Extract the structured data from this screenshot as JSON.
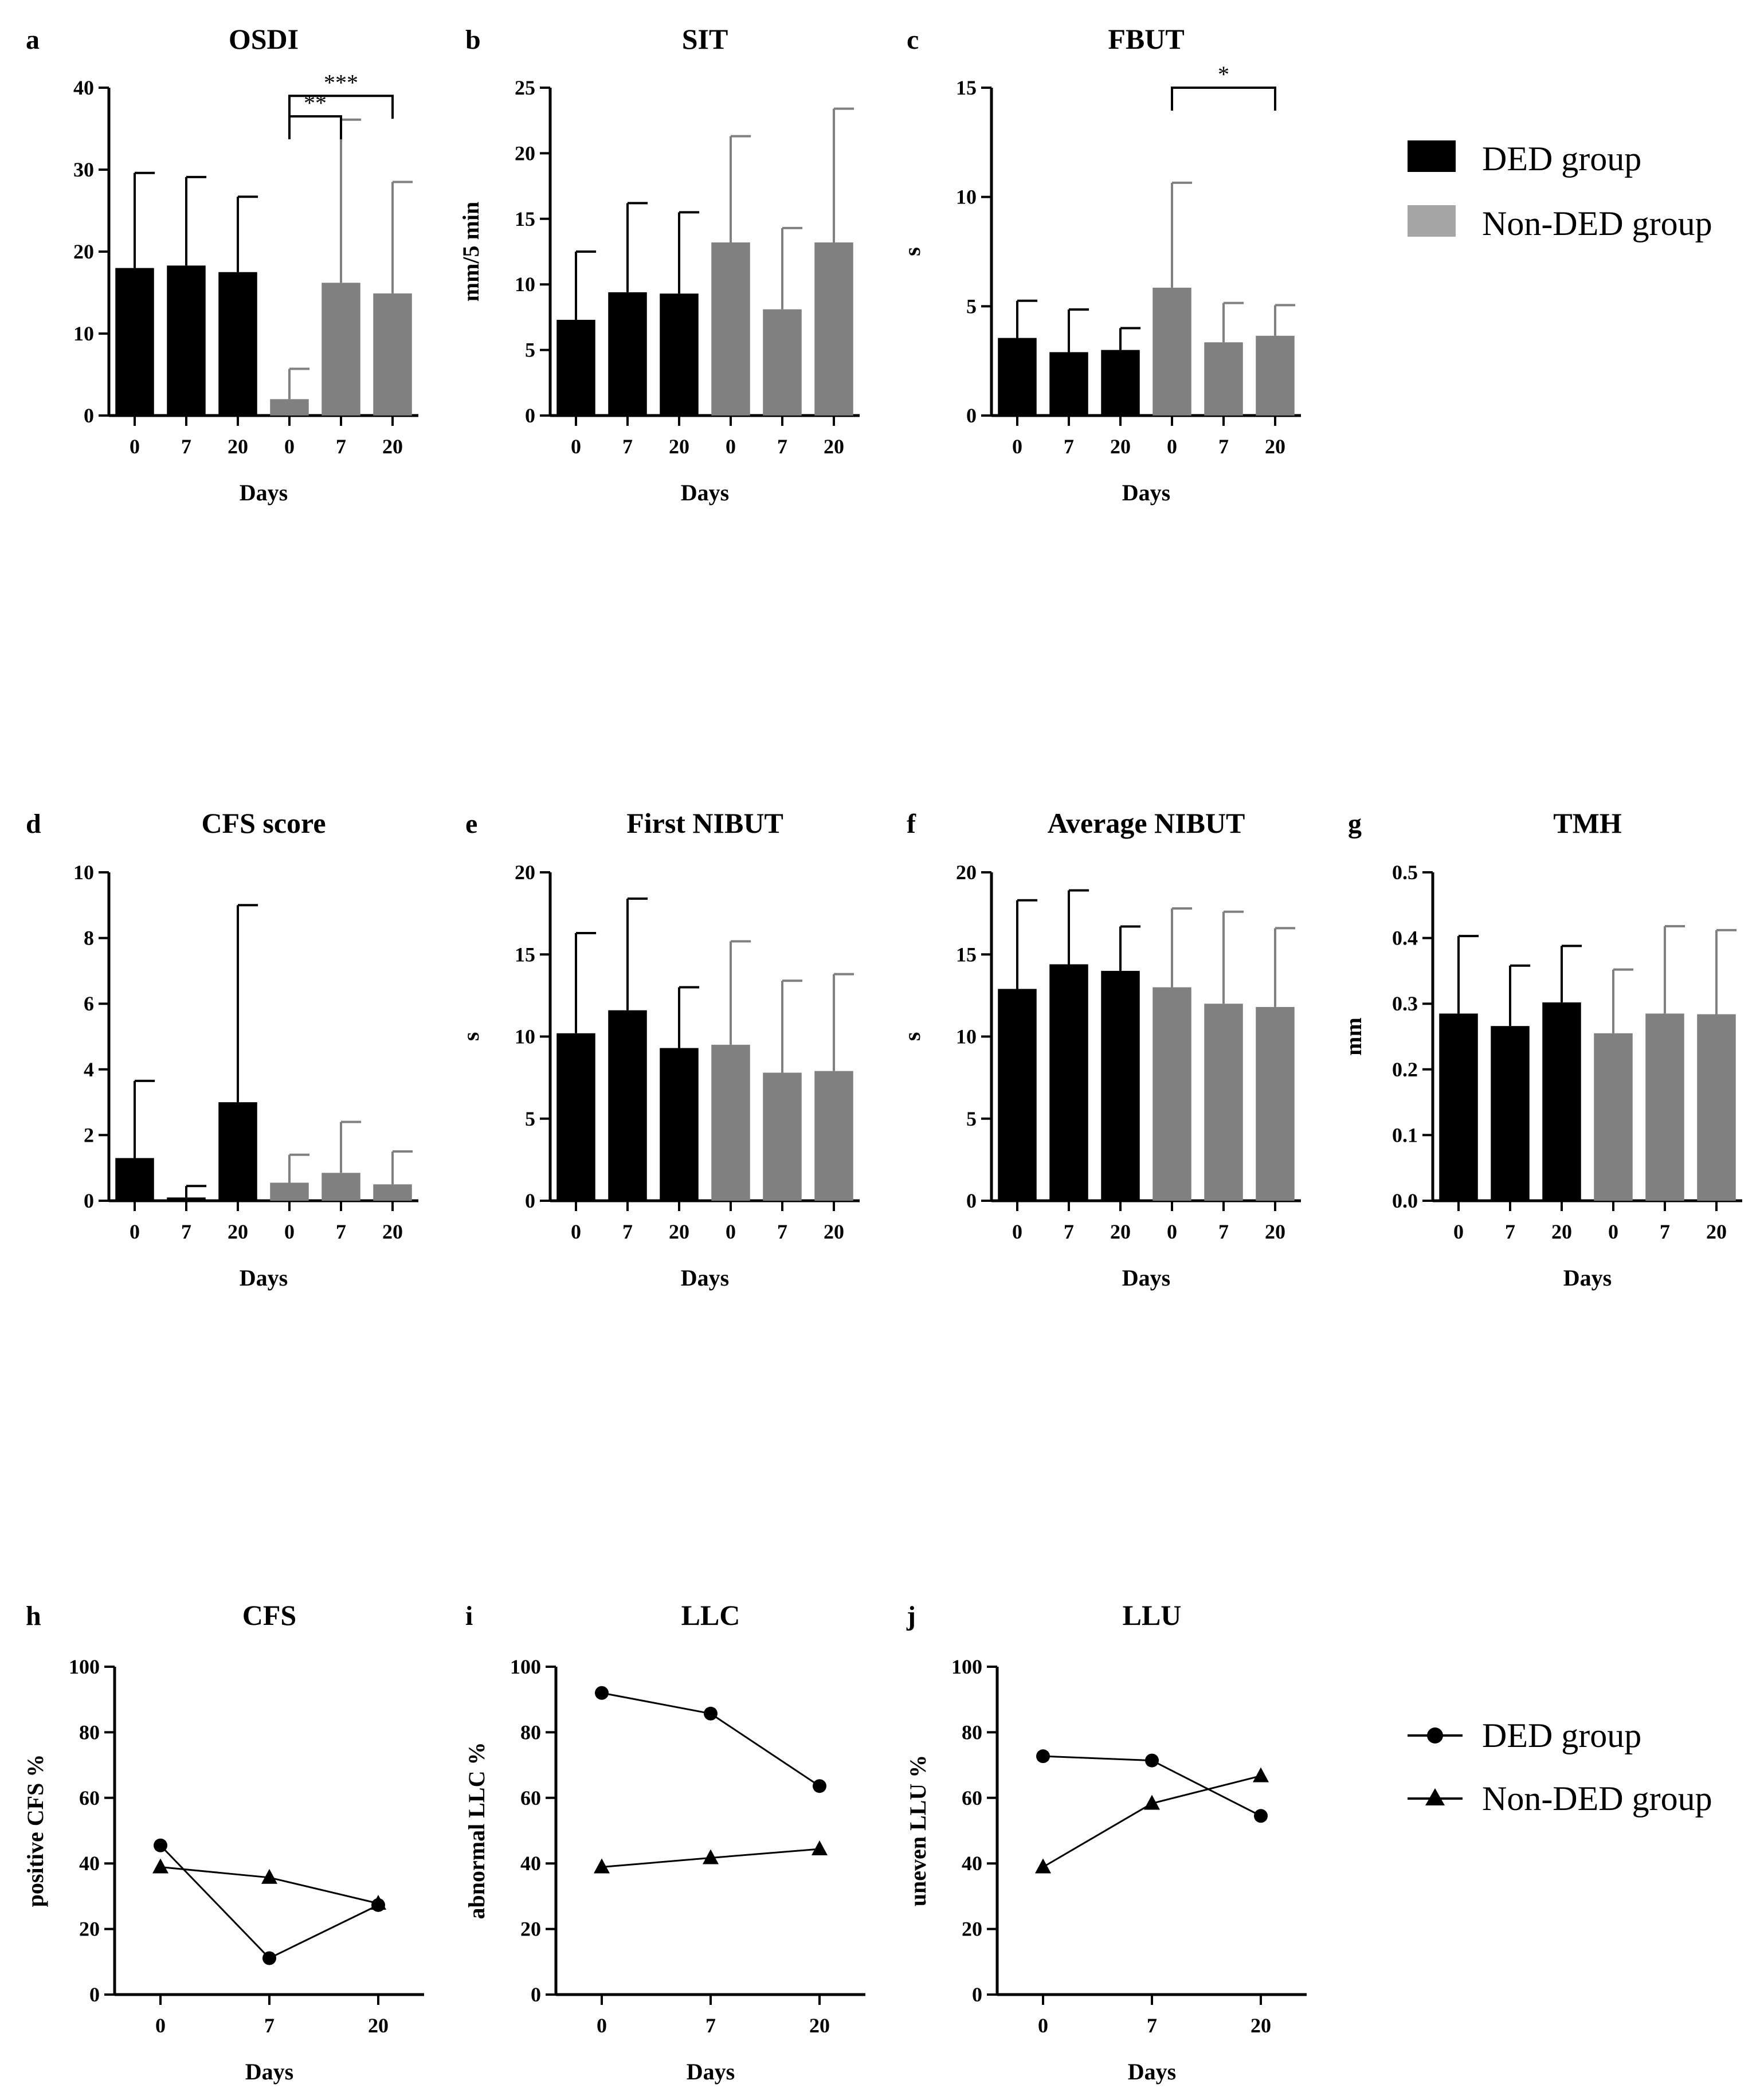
{
  "colors": {
    "ded": "#000000",
    "non_ded": "#808080",
    "axis": "#000000"
  },
  "legend_bar": [
    {
      "label": "DED group",
      "color": "#000000"
    },
    {
      "label": "Non-DED group",
      "color": "#a6a6a6"
    }
  ],
  "legend_line": [
    {
      "label": "DED group",
      "marker": "circle"
    },
    {
      "label": "Non-DED group",
      "marker": "triangle"
    }
  ],
  "chart_data": [
    {
      "id": "a",
      "type": "bar",
      "letter": "a",
      "title": "OSDI",
      "xlabel": "Days",
      "ylabel": "",
      "categories": [
        "0",
        "7",
        "20",
        "0",
        "7",
        "20"
      ],
      "groups": [
        "DED",
        "DED",
        "DED",
        "Non-DED",
        "Non-DED",
        "Non-DED"
      ],
      "values": [
        18,
        18.3,
        17.5,
        2,
        16.2,
        14.9
      ],
      "errors": [
        11.6,
        10.8,
        9.2,
        3.7,
        19.9,
        13.6
      ],
      "ylim": [
        0,
        40
      ],
      "yticks": [
        "0",
        "10",
        "20",
        "30",
        "40"
      ],
      "significance": [
        {
          "from": 3,
          "to": 4,
          "label": "**",
          "y": 36.5
        },
        {
          "from": 3,
          "to": 5,
          "label": "***",
          "y": 39
        }
      ]
    },
    {
      "id": "b",
      "type": "bar",
      "letter": "b",
      "title": "SIT",
      "xlabel": "Days",
      "ylabel": "mm/5 min",
      "categories": [
        "0",
        "7",
        "20",
        "0",
        "7",
        "20"
      ],
      "groups": [
        "DED",
        "DED",
        "DED",
        "Non-DED",
        "Non-DED",
        "Non-DED"
      ],
      "values": [
        7.3,
        9.4,
        9.3,
        13.2,
        8.1,
        13.2
      ],
      "errors": [
        5.2,
        6.8,
        6.2,
        8.1,
        6.2,
        10.2
      ],
      "ylim": [
        0,
        25
      ],
      "yticks": [
        "0",
        "5",
        "10",
        "15",
        "20",
        "25"
      ],
      "significance": []
    },
    {
      "id": "c",
      "type": "bar",
      "letter": "c",
      "title": "FBUT",
      "xlabel": "Days",
      "ylabel": "s",
      "categories": [
        "0",
        "7",
        "20",
        "0",
        "7",
        "20"
      ],
      "groups": [
        "DED",
        "DED",
        "DED",
        "Non-DED",
        "Non-DED",
        "Non-DED"
      ],
      "values": [
        3.55,
        2.9,
        3.0,
        5.85,
        3.35,
        3.65
      ],
      "errors": [
        1.7,
        1.95,
        1.0,
        4.8,
        1.8,
        1.4
      ],
      "ylim": [
        0,
        15
      ],
      "yticks": [
        "0",
        "5",
        "10",
        "15"
      ],
      "significance": [
        {
          "from": 3,
          "to": 5,
          "label": "*",
          "y": 15
        }
      ]
    },
    {
      "id": "d",
      "type": "bar",
      "letter": "d",
      "title": "CFS score",
      "xlabel": "Days",
      "ylabel": "",
      "categories": [
        "0",
        "7",
        "20",
        "0",
        "7",
        "20"
      ],
      "groups": [
        "DED",
        "DED",
        "DED",
        "Non-DED",
        "Non-DED",
        "Non-DED"
      ],
      "values": [
        1.3,
        0.1,
        3.0,
        0.55,
        0.85,
        0.5
      ],
      "errors": [
        2.35,
        0.35,
        6.0,
        0.85,
        1.55,
        1.0
      ],
      "ylim": [
        0,
        10
      ],
      "yticks": [
        "0",
        "2",
        "4",
        "6",
        "8",
        "10"
      ],
      "significance": []
    },
    {
      "id": "e",
      "type": "bar",
      "letter": "e",
      "title": "First NIBUT",
      "xlabel": "Days",
      "ylabel": "s",
      "categories": [
        "0",
        "7",
        "20",
        "0",
        "7",
        "20"
      ],
      "groups": [
        "DED",
        "DED",
        "DED",
        "Non-DED",
        "Non-DED",
        "Non-DED"
      ],
      "values": [
        10.2,
        11.6,
        9.3,
        9.5,
        7.8,
        7.9
      ],
      "errors": [
        6.1,
        6.8,
        3.7,
        6.3,
        5.6,
        5.9
      ],
      "ylim": [
        0,
        20
      ],
      "yticks": [
        "0",
        "5",
        "10",
        "15",
        "20"
      ],
      "significance": []
    },
    {
      "id": "f",
      "type": "bar",
      "letter": "f",
      "title": "Average NIBUT",
      "xlabel": "Days",
      "ylabel": "s",
      "categories": [
        "0",
        "7",
        "20",
        "0",
        "7",
        "20"
      ],
      "groups": [
        "DED",
        "DED",
        "DED",
        "Non-DED",
        "Non-DED",
        "Non-DED"
      ],
      "values": [
        12.9,
        14.4,
        14.0,
        13.0,
        12.0,
        11.8
      ],
      "errors": [
        5.4,
        4.5,
        2.7,
        4.8,
        5.6,
        4.8
      ],
      "ylim": [
        0,
        20
      ],
      "yticks": [
        "0",
        "5",
        "10",
        "15",
        "20"
      ],
      "significance": []
    },
    {
      "id": "g",
      "type": "bar",
      "letter": "g",
      "title": "TMH",
      "xlabel": "Days",
      "ylabel": "mm",
      "categories": [
        "0",
        "7",
        "20",
        "0",
        "7",
        "20"
      ],
      "groups": [
        "DED",
        "DED",
        "DED",
        "Non-DED",
        "Non-DED",
        "Non-DED"
      ],
      "values": [
        0.285,
        0.266,
        0.302,
        0.255,
        0.285,
        0.284
      ],
      "errors": [
        0.118,
        0.092,
        0.086,
        0.097,
        0.133,
        0.128
      ],
      "ylim": [
        0,
        0.5
      ],
      "yticks": [
        "0.0",
        "0.1",
        "0.2",
        "0.3",
        "0.4",
        "0.5"
      ],
      "significance": []
    },
    {
      "id": "h",
      "type": "line",
      "letter": "h",
      "title": "CFS",
      "xlabel": "Days",
      "ylabel": "positive CFS %",
      "x": [
        "0",
        "7",
        "20"
      ],
      "series": [
        {
          "name": "DED group",
          "marker": "circle",
          "values": [
            45.5,
            11.1,
            27.3
          ]
        },
        {
          "name": "Non-DED group",
          "marker": "triangle",
          "values": [
            38.9,
            35.7,
            27.8
          ]
        }
      ],
      "ylim": [
        0,
        100
      ],
      "yticks": [
        "0",
        "20",
        "40",
        "60",
        "80",
        "100"
      ]
    },
    {
      "id": "i",
      "type": "line",
      "letter": "i",
      "title": "LLC",
      "xlabel": "Days",
      "ylabel": "abnormal LLC %",
      "x": [
        "0",
        "7",
        "20"
      ],
      "series": [
        {
          "name": "DED group",
          "marker": "circle",
          "values": [
            92.0,
            85.7,
            63.6
          ]
        },
        {
          "name": "Non-DED group",
          "marker": "triangle",
          "values": [
            38.9,
            41.7,
            44.4
          ]
        }
      ],
      "ylim": [
        0,
        100
      ],
      "yticks": [
        "0",
        "20",
        "40",
        "60",
        "80",
        "100"
      ]
    },
    {
      "id": "j",
      "type": "line",
      "letter": "j",
      "title": "LLU",
      "xlabel": "Days",
      "ylabel": "uneven LLU %",
      "x": [
        "0",
        "7",
        "20"
      ],
      "series": [
        {
          "name": "DED group",
          "marker": "circle",
          "values": [
            72.7,
            71.4,
            54.5
          ]
        },
        {
          "name": "Non-DED group",
          "marker": "triangle",
          "values": [
            38.9,
            58.3,
            66.7
          ]
        }
      ],
      "ylim": [
        0,
        100
      ],
      "yticks": [
        "0",
        "20",
        "40",
        "60",
        "80",
        "100"
      ]
    }
  ]
}
